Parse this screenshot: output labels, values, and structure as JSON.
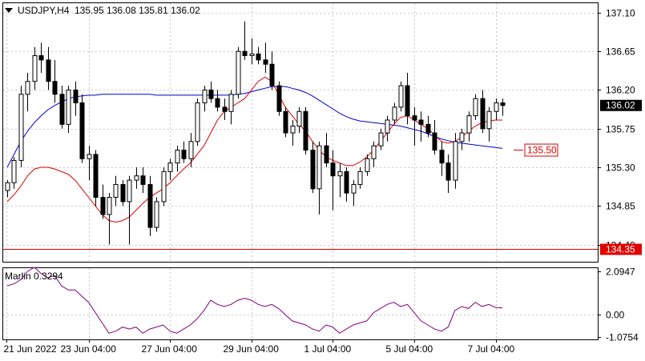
{
  "header": {
    "symbol": "USDJPY,H4",
    "ohlc": "135.95 136.08 135.81 136.02"
  },
  "indicator": {
    "name": "Marlin",
    "value": "0.3294",
    "label": "Marlin 0.3294"
  },
  "colors": {
    "background": "#ffffff",
    "candle": "#000000",
    "ma_fast": "#e00000",
    "ma_slow": "#0000cc",
    "hline": "#e00000",
    "oscillator": "#800080",
    "price_label_bg": "#e00000"
  },
  "chart_data": [
    {
      "type": "candlestick",
      "title": "USDJPY,H4",
      "ylim": [
        134.2,
        137.22
      ],
      "y_ticks": [
        "137.10",
        "136.65",
        "136.20",
        "135.75",
        "135.30",
        "134.85",
        "134.40"
      ],
      "x_ticks": [
        "21 Jun 2022",
        "23 Jun 04:00",
        "27 Jun 04:00",
        "29 Jun 04:00",
        "1 Jul 04:00",
        "5 Jul 04:00",
        "7 Jul 04:00"
      ],
      "current_price": "136.02",
      "horizontal_line": {
        "value": 134.35,
        "label": "134.35"
      },
      "marker": {
        "value": 135.5,
        "label": "135.50"
      },
      "candles": [
        [
          135.03,
          135.15,
          134.95,
          135.12
        ],
        [
          135.12,
          135.42,
          135.05,
          135.38
        ],
        [
          135.38,
          136.25,
          135.3,
          136.15
        ],
        [
          136.15,
          136.4,
          135.95,
          136.3
        ],
        [
          136.3,
          136.7,
          136.2,
          136.6
        ],
        [
          136.6,
          136.75,
          136.4,
          136.55
        ],
        [
          136.55,
          136.7,
          136.2,
          136.3
        ],
        [
          136.3,
          136.55,
          136.05,
          136.15
        ],
        [
          136.15,
          136.25,
          135.75,
          135.8
        ],
        [
          135.8,
          136.25,
          135.7,
          136.2
        ],
        [
          136.2,
          136.3,
          135.9,
          136.05
        ],
        [
          136.05,
          136.15,
          135.35,
          135.4
        ],
        [
          135.4,
          135.55,
          135.15,
          135.45
        ],
        [
          135.45,
          135.5,
          134.85,
          134.95
        ],
        [
          134.95,
          135.1,
          134.7,
          134.75
        ],
        [
          134.75,
          135.0,
          134.4,
          134.95
        ],
        [
          134.95,
          135.2,
          134.85,
          135.1
        ],
        [
          135.1,
          135.15,
          134.85,
          134.9
        ],
        [
          134.9,
          135.2,
          134.4,
          135.15
        ],
        [
          135.15,
          135.3,
          135.05,
          135.2
        ],
        [
          135.2,
          135.3,
          135.0,
          135.1
        ],
        [
          135.1,
          135.2,
          134.5,
          134.6
        ],
        [
          134.6,
          134.95,
          134.55,
          134.9
        ],
        [
          134.9,
          135.3,
          134.85,
          135.25
        ],
        [
          135.25,
          135.4,
          135.15,
          135.35
        ],
        [
          135.35,
          135.55,
          135.25,
          135.5
        ],
        [
          135.5,
          135.6,
          135.35,
          135.4
        ],
        [
          135.4,
          135.7,
          135.3,
          135.6
        ],
        [
          135.6,
          136.1,
          135.55,
          136.05
        ],
        [
          136.05,
          136.25,
          135.95,
          136.2
        ],
        [
          136.2,
          136.3,
          136.05,
          136.1
        ],
        [
          136.1,
          136.2,
          135.95,
          136.0
        ],
        [
          136.0,
          136.1,
          135.85,
          135.95
        ],
        [
          135.95,
          136.2,
          135.8,
          136.15
        ],
        [
          136.15,
          136.7,
          136.1,
          136.65
        ],
        [
          136.65,
          137.0,
          136.55,
          136.6
        ],
        [
          136.6,
          136.8,
          136.5,
          136.62
        ],
        [
          136.62,
          136.7,
          136.5,
          136.55
        ],
        [
          136.55,
          136.75,
          136.4,
          136.5
        ],
        [
          136.5,
          136.65,
          136.2,
          136.25
        ],
        [
          136.25,
          136.3,
          135.9,
          135.95
        ],
        [
          135.95,
          136.0,
          135.65,
          135.7
        ],
        [
          135.7,
          135.85,
          135.55,
          135.78
        ],
        [
          135.78,
          136.0,
          135.7,
          135.95
        ],
        [
          135.95,
          136.0,
          135.45,
          135.5
        ],
        [
          135.5,
          135.6,
          135.0,
          135.05
        ],
        [
          135.05,
          135.6,
          134.75,
          135.55
        ],
        [
          135.55,
          135.7,
          135.3,
          135.35
        ],
        [
          135.35,
          135.5,
          134.8,
          135.2
        ],
        [
          135.2,
          135.35,
          134.95,
          135.25
        ],
        [
          135.25,
          135.3,
          134.9,
          135.0
        ],
        [
          135.0,
          135.15,
          134.85,
          135.1
        ],
        [
          135.1,
          135.3,
          135.05,
          135.25
        ],
        [
          135.25,
          135.45,
          135.2,
          135.4
        ],
        [
          135.4,
          135.6,
          135.3,
          135.55
        ],
        [
          135.55,
          135.75,
          135.5,
          135.7
        ],
        [
          135.7,
          135.9,
          135.6,
          135.85
        ],
        [
          135.85,
          136.05,
          135.8,
          136.0
        ],
        [
          136.0,
          136.3,
          135.95,
          136.25
        ],
        [
          136.25,
          136.4,
          135.8,
          135.9
        ],
        [
          135.9,
          136.0,
          135.55,
          135.85
        ],
        [
          135.85,
          135.95,
          135.6,
          135.8
        ],
        [
          135.8,
          135.9,
          135.65,
          135.7
        ],
        [
          135.7,
          135.85,
          135.45,
          135.5
        ],
        [
          135.5,
          135.6,
          135.2,
          135.35
        ],
        [
          135.35,
          135.45,
          135.0,
          135.15
        ],
        [
          135.15,
          135.7,
          135.05,
          135.6
        ],
        [
          135.6,
          135.75,
          135.5,
          135.7
        ],
        [
          135.7,
          135.95,
          135.6,
          135.9
        ],
        [
          135.9,
          136.15,
          135.85,
          136.1
        ],
        [
          136.1,
          136.2,
          135.7,
          135.75
        ],
        [
          135.75,
          136.0,
          135.6,
          135.95
        ],
        [
          135.95,
          136.1,
          135.85,
          136.05
        ],
        [
          136.05,
          136.1,
          135.9,
          136.02
        ]
      ],
      "ma_fast": {
        "color": "#e00000",
        "values": [
          134.9,
          134.98,
          135.08,
          135.2,
          135.28,
          135.3,
          135.3,
          135.28,
          135.25,
          135.22,
          135.15,
          135.05,
          134.95,
          134.85,
          134.75,
          134.68,
          134.66,
          134.68,
          134.72,
          134.8,
          134.88,
          134.95,
          135.0,
          135.05,
          135.12,
          135.2,
          135.28,
          135.35,
          135.45,
          135.55,
          135.7,
          135.85,
          135.95,
          136.0,
          136.05,
          136.1,
          136.2,
          136.3,
          136.35,
          136.3,
          136.15,
          136.0,
          135.9,
          135.8,
          135.72,
          135.6,
          135.5,
          135.42,
          135.38,
          135.35,
          135.32,
          135.32,
          135.36,
          135.42,
          135.5,
          135.6,
          135.7,
          135.8,
          135.88,
          135.9,
          135.85,
          135.8,
          135.75,
          135.68,
          135.6,
          135.58,
          135.6,
          135.65,
          135.72,
          135.78,
          135.82,
          135.84,
          135.85,
          135.85
        ]
      },
      "ma_slow": {
        "color": "#0000cc",
        "values": [
          135.3,
          135.45,
          135.6,
          135.72,
          135.82,
          135.9,
          135.97,
          136.02,
          136.06,
          136.1,
          136.12,
          136.13,
          136.14,
          136.14,
          136.15,
          136.15,
          136.15,
          136.15,
          136.15,
          136.15,
          136.15,
          136.15,
          136.14,
          136.14,
          136.14,
          136.14,
          136.14,
          136.14,
          136.14,
          136.14,
          136.14,
          136.14,
          136.14,
          136.14,
          136.15,
          136.16,
          136.18,
          136.2,
          136.22,
          136.24,
          136.24,
          136.24,
          136.22,
          136.2,
          136.17,
          136.13,
          136.08,
          136.03,
          135.98,
          135.93,
          135.89,
          135.86,
          135.84,
          135.83,
          135.82,
          135.81,
          135.8,
          135.79,
          135.78,
          135.76,
          135.74,
          135.72,
          135.69,
          135.66,
          135.63,
          135.61,
          135.59,
          135.58,
          135.57,
          135.56,
          135.55,
          135.54,
          135.53,
          135.52
        ]
      }
    },
    {
      "type": "line",
      "title": "Marlin 0.3294",
      "ylim": [
        -1.2,
        2.3
      ],
      "y_ticks": [
        "2.0947",
        "0.00",
        "-1.0754"
      ],
      "series": [
        {
          "name": "Marlin",
          "values": [
            1.4,
            1.5,
            1.7,
            2.1,
            2.3,
            2.0,
            1.8,
            1.9,
            1.4,
            1.2,
            1.2,
            0.9,
            0.6,
            0.1,
            -0.4,
            -0.9,
            -0.8,
            -0.6,
            -0.7,
            -0.6,
            -0.9,
            -0.7,
            -0.6,
            -0.5,
            -0.8,
            -0.9,
            -0.7,
            -0.5,
            -0.2,
            0.2,
            0.7,
            0.5,
            0.4,
            0.5,
            0.7,
            0.8,
            0.7,
            0.5,
            0.4,
            0.5,
            0.3,
            0.0,
            -0.3,
            -0.4,
            -0.5,
            -0.7,
            -0.8,
            -0.5,
            -0.6,
            -0.9,
            -0.7,
            -0.5,
            -0.4,
            -0.3,
            0.1,
            0.3,
            0.5,
            0.6,
            0.4,
            0.5,
            0.1,
            -0.3,
            -0.5,
            -0.7,
            -0.8,
            -0.6,
            0.2,
            0.4,
            0.3,
            0.6,
            0.4,
            0.5,
            0.35,
            0.33
          ]
        }
      ]
    }
  ]
}
